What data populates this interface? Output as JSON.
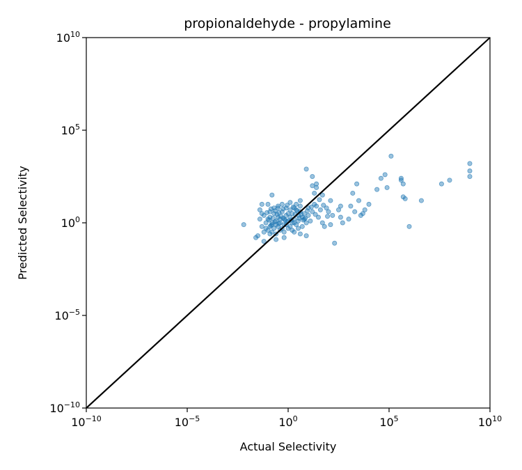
{
  "chart_data": {
    "type": "scatter",
    "title": "propionaldehyde - propylamine",
    "xlabel": "Actual Selectivity",
    "ylabel": "Predicted Selectivity",
    "scale": "log",
    "xlim_exp": [
      -10,
      10
    ],
    "ylim_exp": [
      -10,
      10
    ],
    "tick_base": "10",
    "ticks": [
      {
        "exp": "−10",
        "value": -10
      },
      {
        "exp": "−5",
        "value": -5
      },
      {
        "exp": "0",
        "value": 0
      },
      {
        "exp": "5",
        "value": 5
      },
      {
        "exp": "10",
        "value": 10
      }
    ],
    "grid": false,
    "reference_line": {
      "x": [
        -10,
        10
      ],
      "y": [
        -10,
        10
      ],
      "color": "#000000"
    },
    "point_color": "#1f77b4",
    "point_alpha": 0.45,
    "points_log10": [
      [
        -2.2,
        -0.1
      ],
      [
        -1.3,
        0.5
      ],
      [
        -1.0,
        1.0
      ],
      [
        -0.5,
        0.8
      ],
      [
        -0.8,
        1.5
      ],
      [
        -1.5,
        -0.7
      ],
      [
        -1.6,
        -0.8
      ],
      [
        -1.2,
        -1.0
      ],
      [
        -0.9,
        -0.6
      ],
      [
        -0.6,
        -0.9
      ],
      [
        -0.2,
        -0.8
      ],
      [
        0.3,
        -0.5
      ],
      [
        0.6,
        -0.6
      ],
      [
        0.9,
        -0.7
      ],
      [
        0.5,
        -0.3
      ],
      [
        0.9,
        2.9
      ],
      [
        1.2,
        2.5
      ],
      [
        1.3,
        1.6
      ],
      [
        1.2,
        2.0
      ],
      [
        1.4,
        2.1
      ],
      [
        1.4,
        1.9
      ],
      [
        1.7,
        1.5
      ],
      [
        1.9,
        0.8
      ],
      [
        2.0,
        0.6
      ],
      [
        1.7,
        0.0
      ],
      [
        1.8,
        -0.2
      ],
      [
        2.1,
        -0.1
      ],
      [
        2.1,
        1.2
      ],
      [
        2.6,
        0.3
      ],
      [
        2.3,
        -1.1
      ],
      [
        2.6,
        0.9
      ],
      [
        2.5,
        0.7
      ],
      [
        2.7,
        0.0
      ],
      [
        2.2,
        0.4
      ],
      [
        1.0,
        0.8
      ],
      [
        1.3,
        1.0
      ],
      [
        0.8,
        0.2
      ],
      [
        0.3,
        0.0
      ],
      [
        0.1,
        1.1
      ],
      [
        0.6,
        1.2
      ],
      [
        3.1,
        0.9
      ],
      [
        3.2,
        1.6
      ],
      [
        3.3,
        0.6
      ],
      [
        3.0,
        0.2
      ],
      [
        3.7,
        0.5
      ],
      [
        3.8,
        0.7
      ],
      [
        3.5,
        1.2
      ],
      [
        4.0,
        1.0
      ],
      [
        3.6,
        0.4
      ],
      [
        3.4,
        2.1
      ],
      [
        4.4,
        1.8
      ],
      [
        4.6,
        2.4
      ],
      [
        4.8,
        2.6
      ],
      [
        4.9,
        1.9
      ],
      [
        5.1,
        3.6
      ],
      [
        5.6,
        2.4
      ],
      [
        5.7,
        2.1
      ],
      [
        5.7,
        1.4
      ],
      [
        5.6,
        2.3
      ],
      [
        5.8,
        1.3
      ],
      [
        6.0,
        -0.2
      ],
      [
        6.6,
        1.2
      ],
      [
        7.6,
        2.1
      ],
      [
        8.0,
        2.3
      ],
      [
        9.0,
        3.2
      ],
      [
        9.0,
        2.8
      ],
      [
        9.0,
        2.5
      ],
      [
        -1.2,
        0.4
      ],
      [
        -1.1,
        0.0
      ],
      [
        -1.0,
        0.2
      ],
      [
        -0.9,
        0.3
      ],
      [
        -0.8,
        -0.1
      ],
      [
        -0.7,
        0.5
      ],
      [
        -0.6,
        0.1
      ],
      [
        -0.5,
        0.3
      ],
      [
        -0.4,
        0.0
      ],
      [
        -0.3,
        0.6
      ],
      [
        -0.2,
        0.2
      ],
      [
        -0.1,
        0.4
      ],
      [
        0.0,
        0.1
      ],
      [
        0.1,
        0.3
      ],
      [
        0.2,
        0.5
      ],
      [
        0.3,
        0.2
      ],
      [
        0.4,
        0.7
      ],
      [
        0.5,
        0.4
      ],
      [
        0.6,
        0.6
      ],
      [
        0.7,
        0.3
      ],
      [
        -1.1,
        -0.3
      ],
      [
        -1.0,
        -0.4
      ],
      [
        -0.9,
        -0.2
      ],
      [
        -0.8,
        -0.5
      ],
      [
        -0.7,
        -0.3
      ],
      [
        -0.6,
        -0.6
      ],
      [
        -0.5,
        -0.2
      ],
      [
        -0.4,
        -0.4
      ],
      [
        -0.3,
        -0.3
      ],
      [
        -0.2,
        -0.5
      ],
      [
        -0.1,
        -0.1
      ],
      [
        0.0,
        -0.3
      ],
      [
        0.1,
        -0.2
      ],
      [
        0.2,
        -0.4
      ],
      [
        0.3,
        0.8
      ],
      [
        -0.9,
        0.6
      ],
      [
        -0.7,
        0.8
      ],
      [
        -0.5,
        0.9
      ],
      [
        -0.3,
        1.0
      ],
      [
        -0.1,
        0.8
      ],
      [
        0.1,
        0.7
      ],
      [
        0.4,
        1.0
      ],
      [
        0.6,
        0.9
      ],
      [
        0.8,
        0.5
      ],
      [
        1.0,
        0.4
      ],
      [
        1.1,
        0.1
      ],
      [
        1.2,
        0.6
      ],
      [
        1.4,
        0.9
      ],
      [
        1.5,
        0.3
      ],
      [
        1.6,
        0.7
      ],
      [
        -1.4,
        0.2
      ],
      [
        -1.3,
        -0.2
      ],
      [
        -1.2,
        -0.5
      ],
      [
        -1.4,
        0.7
      ],
      [
        -1.3,
        1.0
      ],
      [
        -0.8,
        0.0
      ],
      [
        -0.6,
        -0.1
      ],
      [
        -0.4,
        0.2
      ],
      [
        -0.2,
        -0.1
      ],
      [
        0.0,
        0.5
      ],
      [
        0.2,
        0.0
      ],
      [
        0.4,
        -0.1
      ],
      [
        0.5,
        0.1
      ],
      [
        0.7,
        -0.2
      ],
      [
        0.9,
        0.0
      ],
      [
        -0.95,
        0.15
      ],
      [
        -0.75,
        0.25
      ],
      [
        -0.55,
        0.45
      ],
      [
        -0.35,
        0.35
      ],
      [
        -0.15,
        0.15
      ],
      [
        -0.85,
        -0.15
      ],
      [
        -0.65,
        0.05
      ],
      [
        -0.45,
        -0.05
      ],
      [
        -0.25,
        0.25
      ],
      [
        -0.05,
        0.05
      ],
      [
        0.15,
        0.15
      ],
      [
        0.35,
        0.45
      ],
      [
        0.55,
        0.25
      ],
      [
        0.75,
        0.15
      ],
      [
        0.95,
        0.65
      ],
      [
        1.15,
        0.85
      ],
      [
        1.35,
        0.45
      ],
      [
        1.55,
        1.25
      ],
      [
        1.75,
        0.95
      ],
      [
        1.95,
        0.35
      ],
      [
        -1.05,
        0.55
      ],
      [
        -0.85,
        0.75
      ],
      [
        -0.65,
        0.65
      ],
      [
        -0.45,
        0.55
      ],
      [
        -0.25,
        0.75
      ],
      [
        -0.05,
        0.95
      ],
      [
        0.25,
        0.85
      ],
      [
        0.45,
        0.65
      ],
      [
        0.65,
        0.45
      ],
      [
        0.85,
        0.25
      ]
    ]
  }
}
